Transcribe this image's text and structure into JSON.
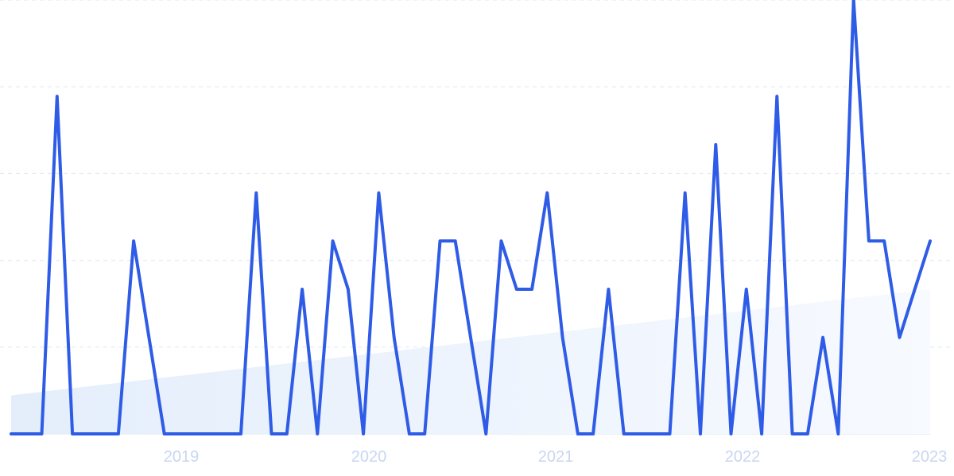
{
  "chart_data": {
    "type": "line",
    "title": "",
    "xlabel": "",
    "ylabel": "",
    "grid": true,
    "x_ticks": [
      "2019",
      "2020",
      "2021",
      "2022",
      "2023"
    ],
    "ylim": [
      0,
      9
    ],
    "series": [
      {
        "values": [
          0,
          0,
          0,
          7,
          0,
          0,
          0,
          0,
          4,
          2,
          0,
          0,
          0,
          0,
          0,
          0,
          5,
          0,
          0,
          3,
          0,
          4,
          3,
          0,
          5,
          2,
          0,
          0,
          4,
          4,
          2,
          0,
          4,
          3,
          3,
          5,
          2,
          0,
          0,
          3,
          0,
          0,
          0,
          0,
          5,
          0,
          6,
          0,
          3,
          0,
          7,
          0,
          0,
          2,
          0,
          9,
          4,
          4,
          2,
          3,
          4
        ]
      }
    ],
    "trend": {
      "start": 0.8,
      "end": 3.0
    },
    "colors": {
      "line": "#2f5ce6",
      "trend_fill_start": "#e4eefb",
      "trend_fill_end": "#f7faff",
      "grid": "#dfe5f0",
      "tick_text": "#c9d6f2"
    }
  }
}
